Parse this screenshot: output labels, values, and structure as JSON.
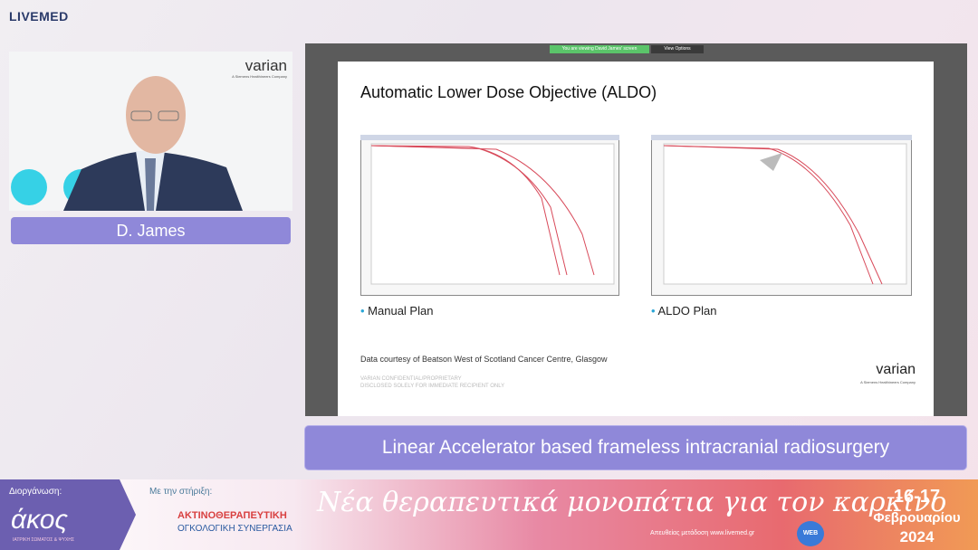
{
  "header": {
    "logo": "LIVEMED"
  },
  "speaker": {
    "company_logo": "varian",
    "company_sub": "A Siemens Healthineers Company",
    "name": "D. James"
  },
  "share_bar": {
    "notice": "You are viewing David James' screen",
    "button": "View Options"
  },
  "slide": {
    "title": "Automatic Lower Dose Objective (ALDO)",
    "bullets": [
      "Manual Plan",
      "ALDO Plan"
    ],
    "note": "Data courtesy of Beatson West of Scotland Cancer Centre, Glasgow",
    "confidential": [
      "VARIAN CONFIDENTIAL/PROPRIETARY",
      "DISCLOSED SOLELY FOR IMMEDIATE RECIPIENT ONLY"
    ],
    "logo": "varian",
    "logo_sub": "A Siemens Healthineers Company"
  },
  "caption": "Linear Accelerator based frameless intracranial radiosurgery",
  "footer": {
    "organizer_label": "Διοργάνωση:",
    "organizer": "άκος",
    "organizer_sub": "ΙΑΤΡΙΚΗ ΣΩΜΑΤΟΣ & ΨΥΧΗΣ",
    "support_label": "Με την στήριξη:",
    "support_name": "ΑΚΤΙΝΟΘΕΡΑΠΕΥΤΙΚΗ",
    "support_sub": "ΟΓΚΟΛΟΓΙΚΗ ΣΥΝΕΡΓΑΣΙΑ",
    "tagline": "Νέα θεραπευτικά μονοπάτια για τον καρκίνο",
    "stream": "Απευθείας μετάδοση www.livemed.gr",
    "web_only": "WEB ONLY",
    "dates": "16-17",
    "month": "Φεβρουαρίου",
    "year": "2024"
  }
}
